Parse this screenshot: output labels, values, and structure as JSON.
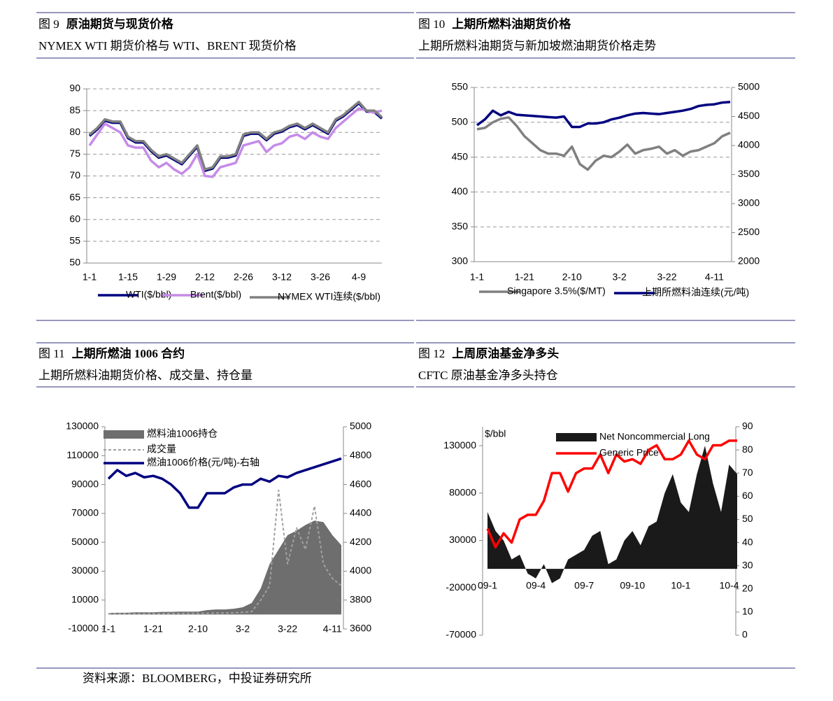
{
  "source": "资料来源：BLOOMBERG，中投证券研究所",
  "chart_data": [
    {
      "type": "line",
      "figure": "图 9",
      "title": "原油期货与现货价格",
      "subtitle": "NYMEX WTI 期货价格与 WTI、BRENT 现货价格",
      "categories": [
        "1-1",
        null,
        null,
        null,
        null,
        "1-15",
        null,
        null,
        null,
        null,
        "1-29",
        null,
        null,
        null,
        null,
        "2-12",
        null,
        null,
        null,
        null,
        "2-26",
        null,
        null,
        null,
        null,
        "3-12",
        null,
        null,
        null,
        null,
        "3-26",
        null,
        null,
        null,
        null,
        "4-9",
        null,
        null,
        null
      ],
      "ylim": [
        50,
        90
      ],
      "yticks": [
        50,
        55,
        60,
        65,
        70,
        75,
        80,
        85,
        90
      ],
      "grid": true,
      "series": [
        {
          "name": "WTI($/bbl)",
          "color": "#000080",
          "values": [
            79.2,
            80.7,
            82.7,
            82.2,
            82.2,
            78.7,
            77.7,
            77.7,
            75.7,
            74.2,
            74.7,
            73.7,
            72.7,
            74.7,
            76.7,
            71.2,
            71.7,
            74.2,
            74.2,
            74.7,
            79.2,
            79.7,
            79.7,
            78.2,
            79.7,
            80.2,
            81.2,
            81.7,
            80.7,
            81.7,
            80.7,
            79.7,
            82.7,
            83.7,
            85.2,
            86.7,
            84.8,
            84.7,
            83.2
          ]
        },
        {
          "name": "Brent($/bbl)",
          "color": "#c58be8",
          "values": [
            77,
            79.5,
            82,
            81,
            80,
            77,
            76.5,
            76.5,
            73.5,
            72,
            73,
            71.5,
            70.5,
            72,
            75,
            70,
            69.8,
            72,
            72.5,
            73,
            77,
            77.5,
            78,
            75.5,
            77,
            77.5,
            79,
            79.5,
            78.5,
            80,
            79,
            78.5,
            81,
            82.5,
            84,
            85.5,
            85,
            84.5,
            85
          ]
        },
        {
          "name": "NYMEX WTI连续($/bbl)",
          "color": "#808080",
          "values": [
            79.5,
            81,
            83,
            82.5,
            82.5,
            79,
            78,
            78,
            76,
            74.5,
            75,
            74,
            73,
            75,
            77,
            71.5,
            72,
            74.5,
            74.5,
            75,
            79.5,
            80,
            80,
            78.5,
            80,
            80.5,
            81.5,
            82,
            81,
            82,
            81,
            80,
            83,
            84,
            85.5,
            87,
            85,
            85,
            83.5
          ]
        }
      ]
    },
    {
      "type": "line",
      "figure": "图 10",
      "title": "上期所燃料油期货价格",
      "subtitle": "上期所燃料油期货与新加坡燃油期货价格走势",
      "categories": [
        "1-1",
        null,
        null,
        null,
        null,
        null,
        "1-21",
        null,
        null,
        null,
        null,
        null,
        "2-10",
        null,
        null,
        null,
        null,
        null,
        "3-2",
        null,
        null,
        null,
        null,
        null,
        "3-22",
        null,
        null,
        null,
        null,
        null,
        "4-11",
        null,
        null
      ],
      "ylim": [
        300,
        550
      ],
      "yticks": [
        300,
        350,
        400,
        450,
        500,
        550
      ],
      "y2lim": [
        2000,
        5000
      ],
      "y2ticks": [
        2000,
        2500,
        3000,
        3500,
        4000,
        4500,
        5000
      ],
      "grid": true,
      "series": [
        {
          "name": "Singapore 3.5%($/MT)",
          "color": "#808080",
          "values": [
            490,
            492,
            500,
            505,
            507,
            495,
            480,
            470,
            460,
            455,
            455,
            452,
            465,
            440,
            432,
            445,
            452,
            450,
            458,
            468,
            455,
            460,
            462,
            465,
            455,
            460,
            452,
            458,
            460,
            465,
            470,
            480,
            485
          ]
        },
        {
          "name": "上期所燃料油连续(元/吨)",
          "color": "#000080",
          "axis": "y2",
          "values": [
            4350,
            4450,
            4600,
            4520,
            4580,
            4530,
            4520,
            4510,
            4500,
            4490,
            4480,
            4500,
            4320,
            4320,
            4380,
            4380,
            4400,
            4450,
            4480,
            4520,
            4550,
            4560,
            4550,
            4540,
            4560,
            4580,
            4600,
            4630,
            4680,
            4700,
            4710,
            4740,
            4750
          ]
        }
      ]
    },
    {
      "type": "combo",
      "figure": "图 11",
      "title": "上期所燃油 1006 合约",
      "subtitle": "上期所燃料油期货价格、成交量、持仓量",
      "categories": [
        "1-1",
        null,
        null,
        null,
        null,
        "1-21",
        null,
        null,
        null,
        null,
        "2-10",
        null,
        null,
        null,
        null,
        "3-2",
        null,
        null,
        null,
        null,
        "3-22",
        null,
        null,
        null,
        null,
        "4-11",
        null
      ],
      "ylim": [
        -10000,
        130000
      ],
      "yticks": [
        -10000,
        10000,
        30000,
        50000,
        70000,
        90000,
        110000,
        130000
      ],
      "y2lim": [
        3600,
        5000
      ],
      "y2ticks": [
        3600,
        3800,
        4000,
        4200,
        4400,
        4600,
        4800,
        5000
      ],
      "series": [
        {
          "name": "燃料油1006持仓",
          "color": "#6e6e6e",
          "type": "area",
          "values": [
            1000,
            1200,
            1200,
            1500,
            1500,
            1500,
            1800,
            1800,
            2000,
            2000,
            2000,
            3000,
            3500,
            3500,
            4000,
            5000,
            8000,
            18000,
            35000,
            45000,
            55000,
            58000,
            62000,
            65000,
            64000,
            55000,
            48000
          ]
        },
        {
          "name": "成交量",
          "color": "#a0a0a0",
          "type": "line",
          "dash": true,
          "values": [
            500,
            500,
            500,
            500,
            500,
            600,
            600,
            700,
            700,
            800,
            800,
            900,
            1000,
            1000,
            1200,
            1500,
            2000,
            10000,
            20000,
            86000,
            35000,
            60000,
            45000,
            75000,
            35000,
            25000,
            20000
          ]
        },
        {
          "name": "燃油1006价格(元/吨)-右轴",
          "color": "#000080",
          "type": "line",
          "axis": "y2",
          "values": [
            4640,
            4700,
            4660,
            4680,
            4650,
            4660,
            4640,
            4600,
            4540,
            4440,
            4440,
            4540,
            4540,
            4540,
            4580,
            4600,
            4600,
            4640,
            4620,
            4660,
            4650,
            4680,
            4700,
            4720,
            4740,
            4760,
            4780
          ]
        }
      ]
    },
    {
      "type": "combo",
      "figure": "图 12",
      "title": "上周原油基金净多头",
      "subtitle": "CFTC 原油基金净多头持仓",
      "y_label": "$/bbl",
      "categories": [
        "09-1",
        null,
        null,
        null,
        null,
        null,
        "09-4",
        null,
        null,
        null,
        null,
        null,
        "09-7",
        null,
        null,
        null,
        null,
        null,
        "09-10",
        null,
        null,
        null,
        null,
        null,
        "10-1",
        null,
        null,
        null,
        null,
        null,
        "10-4",
        null
      ],
      "ylim": [
        -70000,
        150000
      ],
      "yticks": [
        -70000,
        -20000,
        30000,
        80000,
        130000
      ],
      "y2lim": [
        0,
        90
      ],
      "y2ticks": [
        0,
        10,
        20,
        30,
        40,
        50,
        60,
        70,
        80,
        90
      ],
      "series": [
        {
          "name": "Net Noncommercial Long",
          "color": "#1a1a1a",
          "type": "area",
          "values": [
            60000,
            40000,
            30000,
            10000,
            15000,
            -5000,
            -10000,
            5000,
            -15000,
            -10000,
            10000,
            15000,
            20000,
            35000,
            40000,
            5000,
            10000,
            30000,
            40000,
            25000,
            45000,
            50000,
            80000,
            100000,
            70000,
            60000,
            100000,
            130000,
            90000,
            60000,
            110000,
            100000
          ]
        },
        {
          "name": "Generic Price",
          "color": "#ff0000",
          "type": "line",
          "axis": "y2",
          "values": [
            46,
            38,
            44,
            40,
            50,
            52,
            52,
            58,
            70,
            70,
            62,
            70,
            72,
            72,
            78,
            70,
            78,
            75,
            76,
            74,
            80,
            82,
            76,
            76,
            78,
            84,
            78,
            76,
            82,
            82,
            84,
            84
          ]
        }
      ]
    }
  ]
}
